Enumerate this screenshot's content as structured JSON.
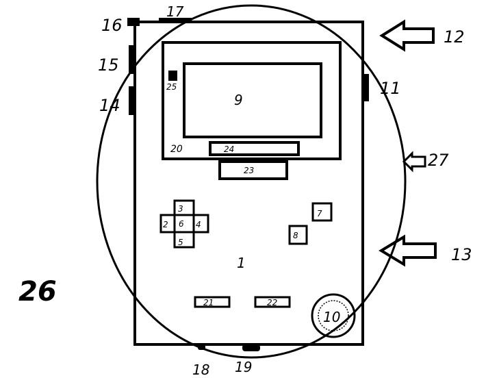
{
  "labels": {
    "l1": "1",
    "l2": "2",
    "l3": "3",
    "l4": "4",
    "l5": "5",
    "l6": "6",
    "l7": "7",
    "l8": "8",
    "l9": "9",
    "l10": "10",
    "l11": "11",
    "l12": "12",
    "l13": "13",
    "l14": "14",
    "l15": "15",
    "l16": "16",
    "l17": "17",
    "l18": "18",
    "l19": "19",
    "l20": "20",
    "l21": "21",
    "l22": "22",
    "l23": "23",
    "l24": "24",
    "l25": "25",
    "l26": "26",
    "l27": "27"
  }
}
